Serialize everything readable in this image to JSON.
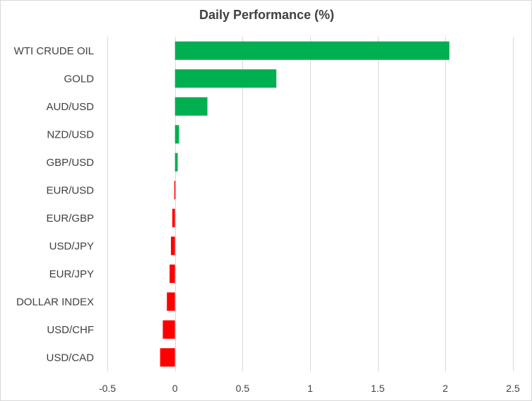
{
  "chart_data": {
    "type": "bar",
    "orientation": "horizontal",
    "title": "Daily Performance  (%)",
    "categories": [
      "WTI CRUDE OIL",
      "GOLD",
      "AUD/USD",
      "NZD/USD",
      "GBP/USD",
      "EUR/USD",
      "EUR/GBP",
      "USD/JPY",
      "EUR/JPY",
      "DOLLAR INDEX",
      "USD/CHF",
      "USD/CAD"
    ],
    "values": [
      2.03,
      0.75,
      0.24,
      0.03,
      0.02,
      -0.005,
      -0.02,
      -0.03,
      -0.04,
      -0.06,
      -0.09,
      -0.11
    ],
    "xlim": [
      -0.5,
      2.5
    ],
    "xticks": [
      "-0.5",
      "0",
      "0.5",
      "1",
      "1.5",
      "2",
      "2.5"
    ],
    "xtick_values": [
      -0.5,
      0,
      0.5,
      1,
      1.5,
      2,
      2.5
    ],
    "grid": true,
    "positive_color": "#00b050",
    "negative_color": "#ff0000",
    "grid_color": "#d9d9d9"
  }
}
